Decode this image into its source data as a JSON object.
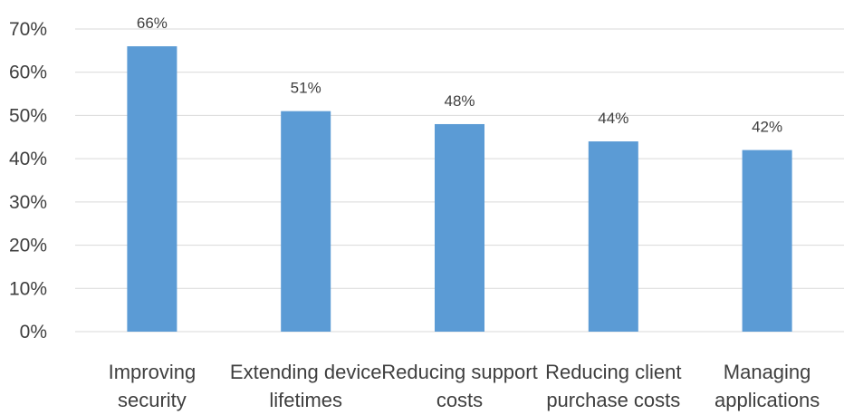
{
  "chart_data": {
    "type": "bar",
    "categories": [
      [
        "Improving",
        "security"
      ],
      [
        "Extending device",
        "lifetimes"
      ],
      [
        "Reducing support",
        "costs"
      ],
      [
        "Reducing client",
        "purchase costs"
      ],
      [
        "Managing",
        "applications"
      ]
    ],
    "values": [
      66,
      51,
      48,
      44,
      42
    ],
    "data_labels": [
      "66%",
      "51%",
      "48%",
      "44%",
      "42%"
    ],
    "y_ticks": [
      0,
      10,
      20,
      30,
      40,
      50,
      60,
      70
    ],
    "y_tick_labels": [
      "0%",
      "10%",
      "20%",
      "30%",
      "40%",
      "50%",
      "60%",
      "70%"
    ],
    "ylim": [
      0,
      70
    ],
    "grid": true,
    "legend": "none",
    "title": "",
    "xlabel": "",
    "ylabel": "",
    "colors": {
      "bar": "#5b9bd5",
      "grid": "#d9d9d9",
      "text": "#3f3f3f"
    }
  }
}
